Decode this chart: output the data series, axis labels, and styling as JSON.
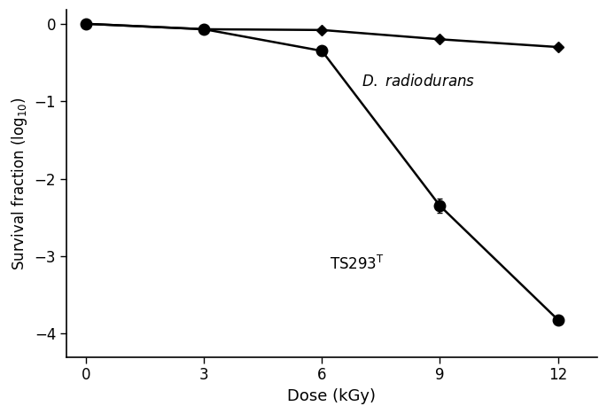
{
  "dr_x": [
    0,
    3,
    6,
    9,
    12
  ],
  "dr_y": [
    0,
    -0.07,
    -0.08,
    -0.2,
    -0.3
  ],
  "dr_yerr": [
    0.0,
    0.03,
    0.03,
    0.03,
    0.03
  ],
  "ts_x": [
    0,
    3,
    6,
    9,
    12
  ],
  "ts_y": [
    0,
    -0.07,
    -0.35,
    -2.35,
    -3.82
  ],
  "ts_yerr": [
    0.0,
    0.03,
    0.05,
    0.09,
    0.04
  ],
  "xlabel": "Dose (kGy)",
  "ylabel": "Survival fraction (log$_{10}$)",
  "xlim": [
    -0.5,
    13.0
  ],
  "ylim": [
    -4.3,
    0.18
  ],
  "yticks": [
    0,
    -1,
    -2,
    -3,
    -4
  ],
  "xticks": [
    0,
    3,
    6,
    9,
    12
  ],
  "color": "#000000",
  "linewidth": 1.8,
  "markersize_circle": 9,
  "markersize_diamond": 6,
  "dr_ann_x": 7.0,
  "dr_ann_y": -0.75,
  "ts_ann_x": 6.2,
  "ts_ann_y": -3.1,
  "tick_labelsize": 12,
  "xlabel_fontsize": 13,
  "ylabel_fontsize": 12
}
